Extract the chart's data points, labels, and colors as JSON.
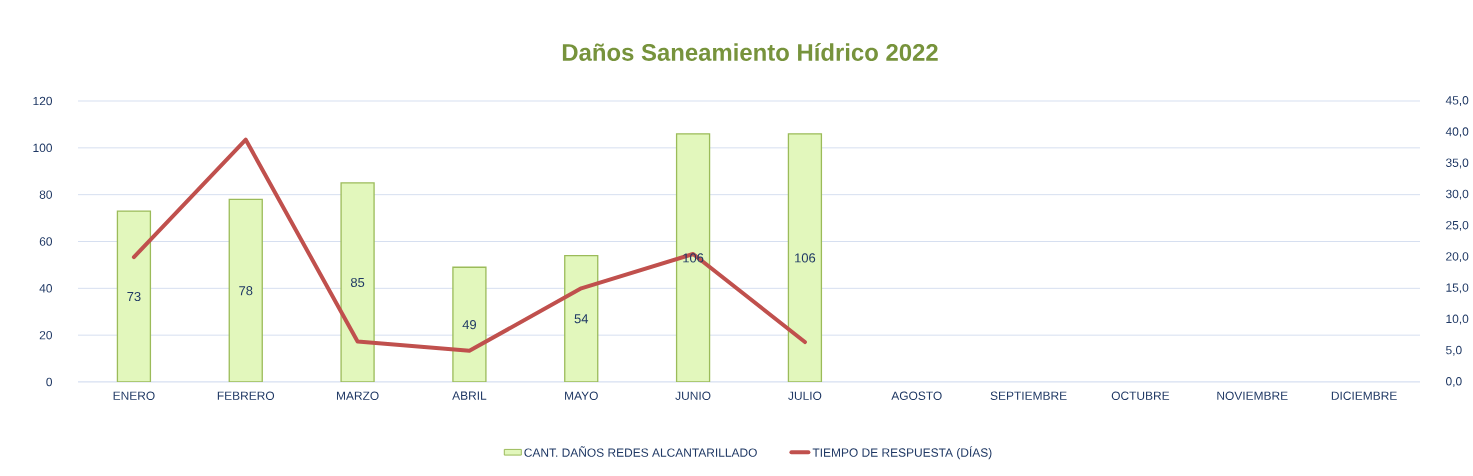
{
  "chart_data": {
    "type": "bar",
    "title": "Daños Saneamiento Hídrico 2022",
    "categories": [
      "ENERO",
      "FEBRERO",
      "MARZO",
      "ABRIL",
      "MAYO",
      "JUNIO",
      "JULIO",
      "AGOSTO",
      "SEPTIEMBRE",
      "OCTUBRE",
      "NOVIEMBRE",
      "DICIEMBRE"
    ],
    "series": [
      {
        "name": "CANT. DAÑOS REDES ALCANTARILLADO",
        "color": "#e2f7bc",
        "values": [
          73,
          78,
          85,
          49,
          54,
          106,
          106,
          null,
          null,
          null,
          null,
          null
        ],
        "value_labels": [
          "73",
          "78",
          "85",
          "49",
          "54",
          "106",
          "106",
          null,
          null,
          null,
          null,
          null
        ]
      },
      {
        "name": "TIEMPO DE RESPUESTA (DÍAS)",
        "type": "line",
        "axis": "y2",
        "color": "#c0504d",
        "values": [
          20.0,
          38.8,
          6.5,
          5.0,
          15.0,
          20.5,
          6.4,
          null,
          null,
          null,
          null,
          null
        ]
      }
    ],
    "ylim": [
      0,
      120
    ],
    "yticks": [
      0,
      20,
      40,
      60,
      80,
      100,
      120
    ],
    "y2lim": [
      0,
      45
    ],
    "y2ticks": [
      {
        "value": 0,
        "label": "0,0"
      },
      {
        "value": 5,
        "label": "5,0"
      },
      {
        "value": 10,
        "label": "10,0"
      },
      {
        "value": 15,
        "label": "15,0"
      },
      {
        "value": 20,
        "label": "20,0"
      },
      {
        "value": 25,
        "label": "25,0"
      },
      {
        "value": 30,
        "label": "30,0"
      },
      {
        "value": 35,
        "label": "35,0"
      },
      {
        "value": 40,
        "label": "40,0"
      },
      {
        "value": 45,
        "label": "45,0"
      }
    ],
    "grid": "y",
    "legend": "bottom"
  }
}
